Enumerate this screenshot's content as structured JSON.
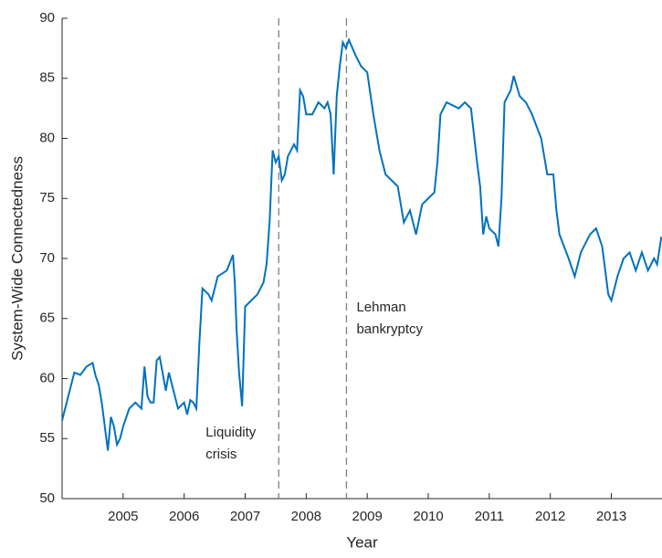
{
  "chart_data": {
    "type": "line",
    "x_label": "Year",
    "y_label": "System-Wide Connectedness",
    "xlim": [
      2004.0,
      2013.83
    ],
    "ylim": [
      50,
      90
    ],
    "xticks": [
      2005,
      2006,
      2007,
      2008,
      2009,
      2010,
      2011,
      2012,
      2013
    ],
    "yticks": [
      50,
      55,
      60,
      65,
      70,
      75,
      80,
      85,
      90
    ],
    "series": [
      {
        "color": "#0072bd",
        "x": [
          2004.0,
          2004.1,
          2004.2,
          2004.3,
          2004.4,
          2004.5,
          2004.55,
          2004.6,
          2004.65,
          2004.7,
          2004.75,
          2004.8,
          2004.85,
          2004.9,
          2004.95,
          2005.0,
          2005.1,
          2005.2,
          2005.3,
          2005.35,
          2005.4,
          2005.45,
          2005.5,
          2005.55,
          2005.6,
          2005.7,
          2005.75,
          2005.8,
          2005.9,
          2006.0,
          2006.05,
          2006.1,
          2006.15,
          2006.2,
          2006.25,
          2006.3,
          2006.4,
          2006.45,
          2006.55,
          2006.7,
          2006.8,
          2006.83,
          2006.86,
          2006.9,
          2006.95,
          2007.0,
          2007.1,
          2007.2,
          2007.3,
          2007.35,
          2007.4,
          2007.45,
          2007.5,
          2007.55,
          2007.6,
          2007.65,
          2007.7,
          2007.8,
          2007.85,
          2007.9,
          2007.95,
          2008.0,
          2008.1,
          2008.2,
          2008.3,
          2008.35,
          2008.4,
          2008.45,
          2008.5,
          2008.55,
          2008.6,
          2008.65,
          2008.7,
          2008.8,
          2008.9,
          2009.0,
          2009.1,
          2009.2,
          2009.3,
          2009.4,
          2009.5,
          2009.6,
          2009.7,
          2009.8,
          2009.9,
          2010.0,
          2010.1,
          2010.15,
          2010.2,
          2010.3,
          2010.5,
          2010.6,
          2010.7,
          2010.8,
          2010.85,
          2010.9,
          2010.95,
          2011.0,
          2011.1,
          2011.15,
          2011.2,
          2011.25,
          2011.35,
          2011.4,
          2011.5,
          2011.6,
          2011.7,
          2011.85,
          2011.95,
          2012.05,
          2012.1,
          2012.15,
          2012.3,
          2012.4,
          2012.5,
          2012.65,
          2012.75,
          2012.85,
          2012.95,
          2013.0,
          2013.1,
          2013.2,
          2013.3,
          2013.4,
          2013.5,
          2013.6,
          2013.7,
          2013.75,
          2013.82
        ],
        "values": [
          56.5,
          58.5,
          60.5,
          60.3,
          61.0,
          61.3,
          60.2,
          59.5,
          58.0,
          56.0,
          54.0,
          56.8,
          56.0,
          54.5,
          55.0,
          56.0,
          57.5,
          58.0,
          57.5,
          61.0,
          58.5,
          58.0,
          58.0,
          61.5,
          61.8,
          59.0,
          60.5,
          59.5,
          57.5,
          58.0,
          57.0,
          58.2,
          58.0,
          57.5,
          63.0,
          67.5,
          67.0,
          66.5,
          68.5,
          69.0,
          70.3,
          68.0,
          64.0,
          60.5,
          57.7,
          66.0,
          66.5,
          67.0,
          68.0,
          69.5,
          73.0,
          79.0,
          78.0,
          78.5,
          76.5,
          77.0,
          78.5,
          79.5,
          79.0,
          84.0,
          83.5,
          82.0,
          82.0,
          83.0,
          82.5,
          83.0,
          82.0,
          77.0,
          83.5,
          86.0,
          88.0,
          87.5,
          88.2,
          87.0,
          86.0,
          85.5,
          82.0,
          79.0,
          77.0,
          76.5,
          76.0,
          73.0,
          74.0,
          72.0,
          74.5,
          75.0,
          75.5,
          78.0,
          82.0,
          83.0,
          82.5,
          83.0,
          82.5,
          78.0,
          76.0,
          72.0,
          73.5,
          72.5,
          72.0,
          71.0,
          75.0,
          83.0,
          84.0,
          85.2,
          83.5,
          83.0,
          82.0,
          80.0,
          77.0,
          77.0,
          74.0,
          72.0,
          70.0,
          68.5,
          70.5,
          72.0,
          72.5,
          71.0,
          67.0,
          66.5,
          68.5,
          70.0,
          70.5,
          69.0,
          70.5,
          69.0,
          70.0,
          69.5,
          71.8
        ]
      }
    ],
    "vlines": [
      {
        "x": 2007.55,
        "label": [
          "Liquidity",
          "crisis"
        ]
      },
      {
        "x": 2008.66,
        "label": [
          "Lehman",
          "bankryptcy"
        ]
      }
    ]
  }
}
